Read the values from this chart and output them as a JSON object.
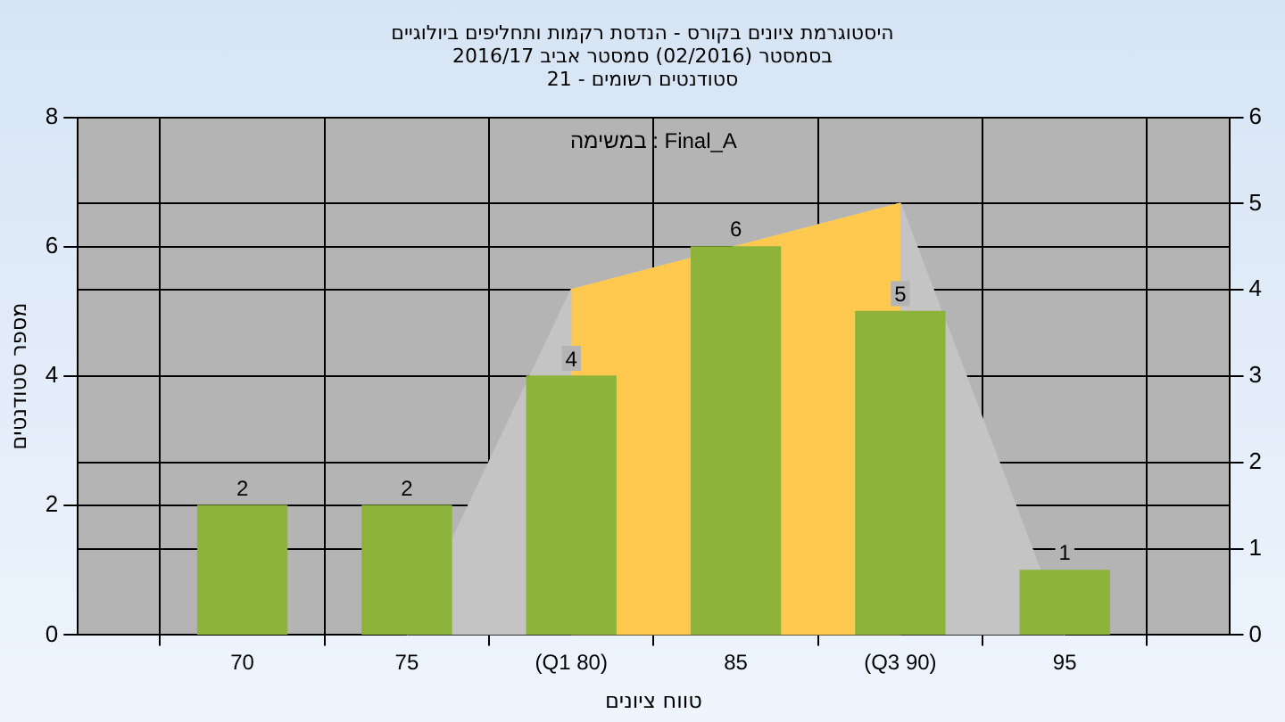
{
  "chart_data": {
    "type": "bar",
    "title": "היסטוגרמת ציונים בקורס - הנדסת רקמות ותחליפים ביולוגיים",
    "subtitle": "בסמסטר (02/2016) סמסטר אביב 2016/17\nסטודנטים רשומים - 21",
    "xlabel": "טווח ציונים",
    "ylabel": "מספר סטודנטים",
    "annotations": [
      "במשימה : Final_A"
    ],
    "categories": [
      "70",
      "75",
      "(Q1 80)",
      "85",
      "(Q3 90)",
      "95"
    ],
    "series": [
      {
        "color": "#8db33a",
        "values": [
          2,
          2,
          4,
          6,
          5,
          1
        ],
        "value_labels": [
          "2",
          "2",
          "4",
          "6",
          "5",
          "1"
        ]
      },
      {
        "type": "area",
        "axis": "y2",
        "color": "#c4c4c4",
        "values": [
          null,
          0,
          4,
          4.5,
          5,
          0
        ]
      },
      {
        "type": "area",
        "axis": "y2",
        "color": "#ffc94f",
        "values": [
          null,
          null,
          4,
          4.5,
          5,
          null
        ]
      }
    ],
    "ylim": [
      0,
      8
    ],
    "yticks": [
      0,
      2,
      4,
      6,
      8
    ],
    "y2lim": [
      0,
      6
    ],
    "y2ticks": [
      0,
      1,
      2,
      3,
      4,
      5,
      6
    ],
    "grid": true,
    "legend": false
  }
}
